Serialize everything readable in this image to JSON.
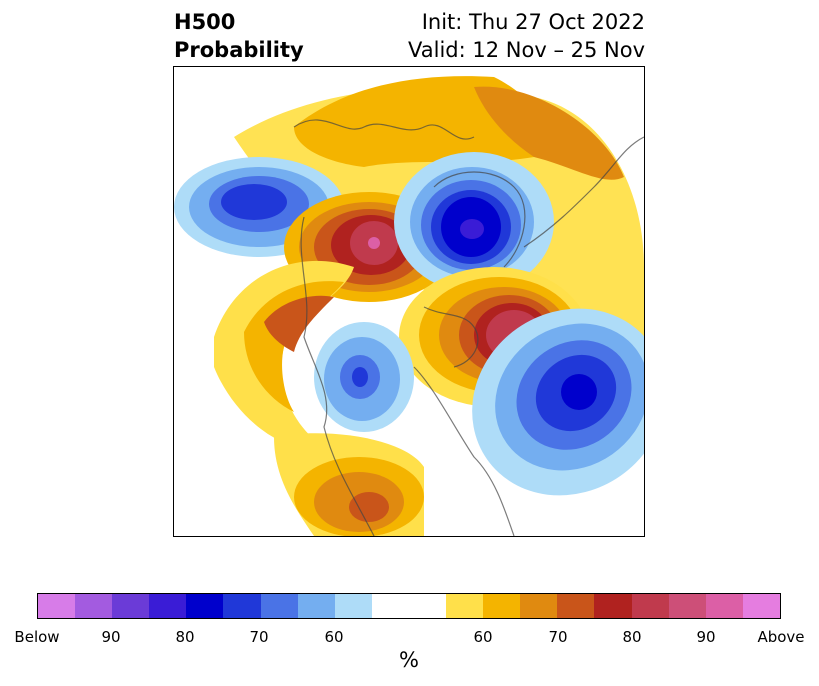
{
  "title": {
    "left_line1": "H500",
    "left_line2": "Probability",
    "right_line1": "Init: Thu 27 Oct 2022",
    "right_line2": "Valid: 12 Nov – 25 Nov"
  },
  "colorbar": {
    "segments": [
      "#d77ce8",
      "#a35be0",
      "#6b3bd7",
      "#3a1cd6",
      "#0000cc",
      "#2038d8",
      "#4a73e6",
      "#74aef0",
      "#aedcf8",
      "#ffffff",
      "#ffe04a",
      "#f4b400",
      "#e08a10",
      "#c9551a",
      "#b0221f",
      "#c03a4d",
      "#cd4f78",
      "#dc5fa6",
      "#e57de0"
    ],
    "ticks": [
      "Below",
      "90",
      "80",
      "70",
      "60",
      "60",
      "70",
      "80",
      "90",
      "Above"
    ],
    "unit": "%"
  }
}
